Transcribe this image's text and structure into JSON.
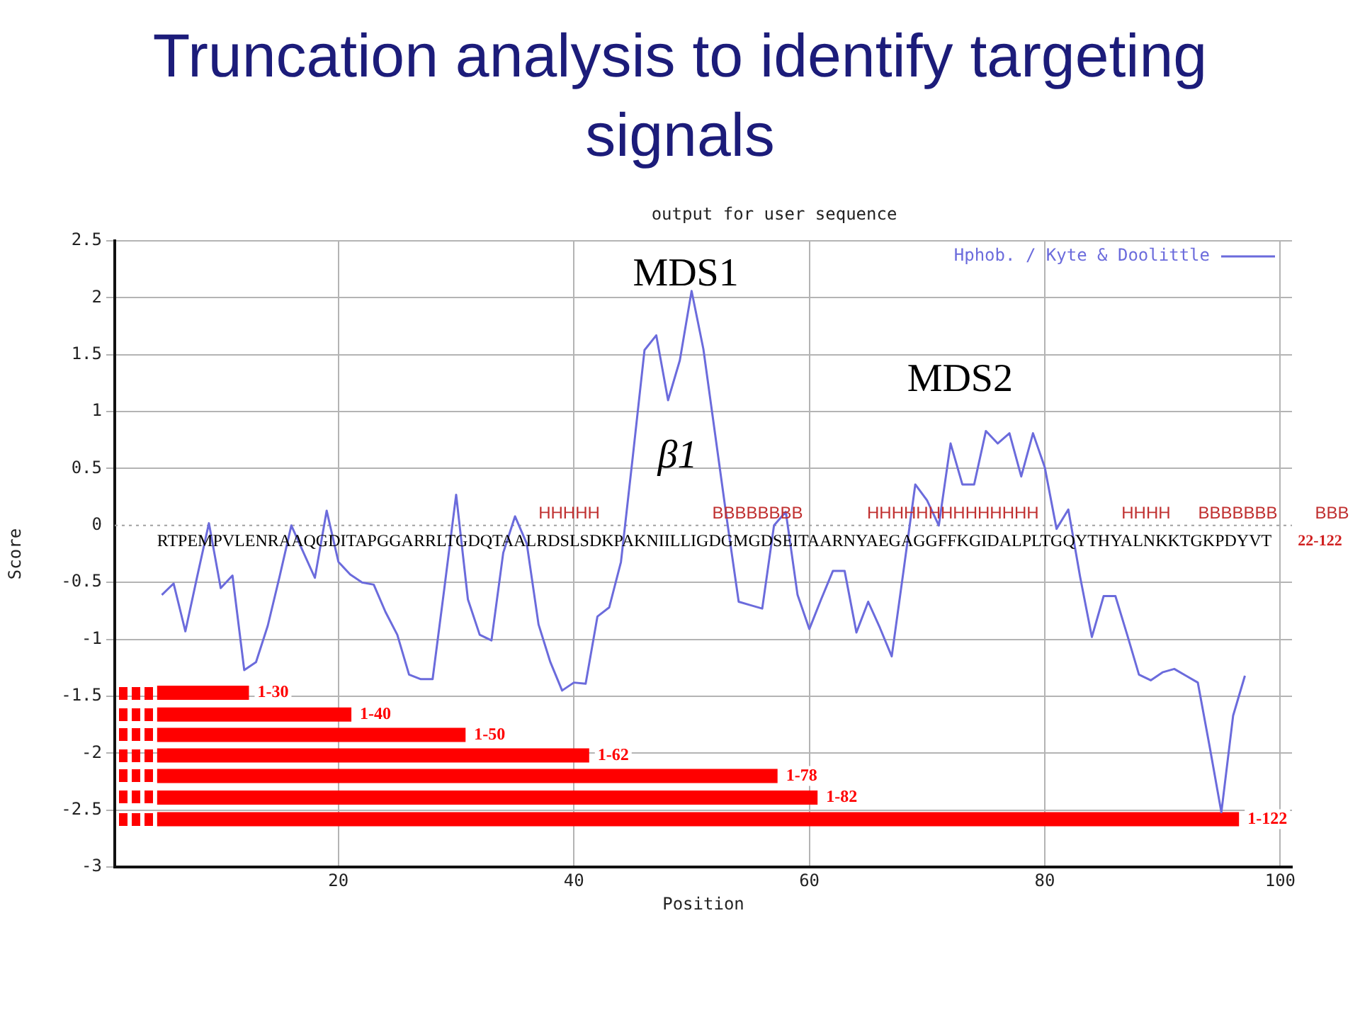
{
  "chart_data": {
    "type": "line",
    "title": "Truncation analysis to identify targeting signals",
    "subtitle": "output for user sequence",
    "xlabel": "Position",
    "ylabel": "Score",
    "xlim": [
      1,
      101
    ],
    "xticks": [
      20,
      40,
      60,
      80,
      100
    ],
    "ylim": [
      -3,
      2.5
    ],
    "yticks": [
      -3,
      -2.5,
      -2,
      -1.5,
      -1,
      -0.5,
      0,
      0.5,
      1,
      1.5,
      2,
      2.5
    ],
    "grid": true,
    "legend": "top right",
    "marker": "none",
    "ref_lines": [
      {
        "axis": "y",
        "value": 0,
        "color": "#a0a0a0",
        "line_style": "dotted"
      }
    ],
    "x": [
      5,
      6,
      7,
      8,
      9,
      10,
      11,
      12,
      13,
      14,
      15,
      16,
      17,
      18,
      19,
      20,
      21,
      22,
      23,
      24,
      25,
      26,
      27,
      28,
      29,
      30,
      31,
      32,
      33,
      34,
      35,
      36,
      37,
      38,
      39,
      40,
      41,
      42,
      43,
      44,
      45,
      46,
      47,
      48,
      49,
      50,
      51,
      52,
      53,
      54,
      55,
      56,
      57,
      58,
      59,
      60,
      61,
      62,
      63,
      64,
      65,
      66,
      67,
      68,
      69,
      70,
      71,
      72,
      73,
      74,
      75,
      76,
      77,
      78,
      79,
      80,
      81,
      82,
      83,
      84,
      85,
      86,
      87,
      88,
      89,
      90,
      91,
      92,
      93,
      94,
      95,
      96,
      97
    ],
    "series": [
      {
        "name": "Hphob. / Kyte & Doolittle",
        "color": "#6b6bdc",
        "values": [
          -0.61,
          -0.51,
          -0.93,
          -0.45,
          0.02,
          -0.55,
          -0.44,
          -1.27,
          -1.2,
          -0.88,
          -0.45,
          0.0,
          -0.23,
          -0.46,
          0.13,
          -0.32,
          -0.43,
          -0.5,
          -0.52,
          -0.76,
          -0.96,
          -1.31,
          -1.35,
          -1.35,
          -0.55,
          0.27,
          -0.65,
          -0.96,
          -1.01,
          -0.24,
          0.08,
          -0.16,
          -0.87,
          -1.2,
          -1.45,
          -1.38,
          -1.39,
          -0.8,
          -0.72,
          -0.32,
          0.6,
          1.54,
          1.67,
          1.1,
          1.45,
          2.06,
          1.55,
          0.8,
          0.05,
          -0.67,
          -0.7,
          -0.73,
          0.0,
          0.12,
          -0.61,
          -0.91,
          -0.65,
          -0.4,
          -0.4,
          -0.94,
          -0.67,
          -0.9,
          -1.15,
          -0.4,
          0.36,
          0.22,
          0.0,
          0.72,
          0.36,
          0.36,
          0.83,
          0.72,
          0.81,
          0.43,
          0.81,
          0.51,
          -0.03,
          0.14,
          -0.45,
          -0.98,
          -0.62,
          -0.62,
          -0.96,
          -1.31,
          -1.36,
          -1.29,
          -1.26,
          -1.32,
          -1.38,
          -1.94,
          -2.52,
          -1.67,
          -1.32
        ]
      },
      {
        "name": "1-30",
        "color": "#ff0000",
        "x": [
          4.6,
          12.4
        ],
        "values": [
          -1.47,
          -1.47
        ]
      },
      {
        "name": "1-40",
        "color": "#ff0000",
        "x": [
          4.6,
          21.1
        ],
        "values": [
          -1.66,
          -1.66
        ]
      },
      {
        "name": "1-50",
        "color": "#ff0000",
        "x": [
          4.6,
          30.8
        ],
        "values": [
          -1.84,
          -1.84
        ]
      },
      {
        "name": "1-62",
        "color": "#ff0000",
        "x": [
          4.6,
          41.3
        ],
        "values": [
          -2.02,
          -2.02
        ]
      },
      {
        "name": "1-78",
        "color": "#ff0000",
        "x": [
          4.6,
          57.3
        ],
        "values": [
          -2.2,
          -2.2
        ]
      },
      {
        "name": "1-82",
        "color": "#ff0000",
        "x": [
          4.6,
          60.7
        ],
        "values": [
          -2.39,
          -2.39
        ]
      },
      {
        "name": "1-122",
        "color": "#ff0000",
        "x": [
          4.6,
          96.5
        ],
        "values": [
          -2.58,
          -2.58
        ]
      }
    ],
    "annotations": [
      "MDS1",
      "β1",
      "MDS2",
      "RTPEMPVLENRAAQGDITAPGGARRLTGDQTAALRDSLSDKPAKNIILLIGDGMGDSEITAARNYAEGAGGFFKGIDALPLTGQYTHYALNKKTGKPDYVT",
      "HHHHH",
      "BBBBBBBB",
      "HHHHHHHHHHHHHH",
      "HHHH",
      "BBBBBBB",
      "BBB",
      "22-122"
    ]
  }
}
